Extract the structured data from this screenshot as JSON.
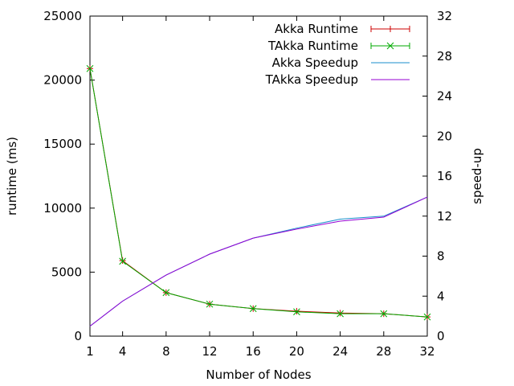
{
  "chart_data": {
    "type": "line",
    "title": "",
    "xlabel": "Number of Nodes",
    "ylabel": "runtime (ms)",
    "y2label": "speed-up",
    "xlim": [
      1,
      32
    ],
    "ylim": [
      0,
      25000
    ],
    "y2lim": [
      0,
      32
    ],
    "xticks": [
      1,
      4,
      8,
      12,
      16,
      20,
      24,
      28,
      32
    ],
    "yticks": [
      0,
      5000,
      10000,
      15000,
      20000,
      25000
    ],
    "y2ticks": [
      0,
      4,
      8,
      12,
      16,
      20,
      24,
      28,
      32
    ],
    "grid": false,
    "legend_position": "top-right",
    "series": [
      {
        "name": "Akka Runtime",
        "axis": "left",
        "color": "#cc0000",
        "marker": "plus",
        "x": [
          1,
          4,
          8,
          12,
          16,
          20,
          24,
          28,
          32
        ],
        "values": [
          20900,
          5900,
          3400,
          2500,
          2150,
          1950,
          1800,
          1750,
          1500
        ]
      },
      {
        "name": "TAkka Runtime",
        "axis": "left",
        "color": "#00aa00",
        "marker": "cross",
        "x": [
          1,
          4,
          8,
          12,
          16,
          20,
          24,
          28,
          32
        ],
        "values": [
          20900,
          5850,
          3400,
          2500,
          2150,
          1900,
          1750,
          1750,
          1500
        ]
      },
      {
        "name": "Akka Speedup",
        "axis": "right",
        "color": "#1a8fcc",
        "marker": "none",
        "x": [
          1,
          4,
          8,
          12,
          16,
          20,
          24,
          28,
          32
        ],
        "values": [
          1.0,
          3.5,
          6.1,
          8.2,
          9.8,
          10.8,
          11.7,
          12.0,
          13.9
        ]
      },
      {
        "name": "TAkka Speedup",
        "axis": "right",
        "color": "#9400d3",
        "marker": "none",
        "x": [
          1,
          4,
          8,
          12,
          16,
          20,
          24,
          28,
          32
        ],
        "values": [
          1.0,
          3.5,
          6.1,
          8.2,
          9.8,
          10.7,
          11.5,
          11.9,
          13.9
        ]
      }
    ]
  }
}
